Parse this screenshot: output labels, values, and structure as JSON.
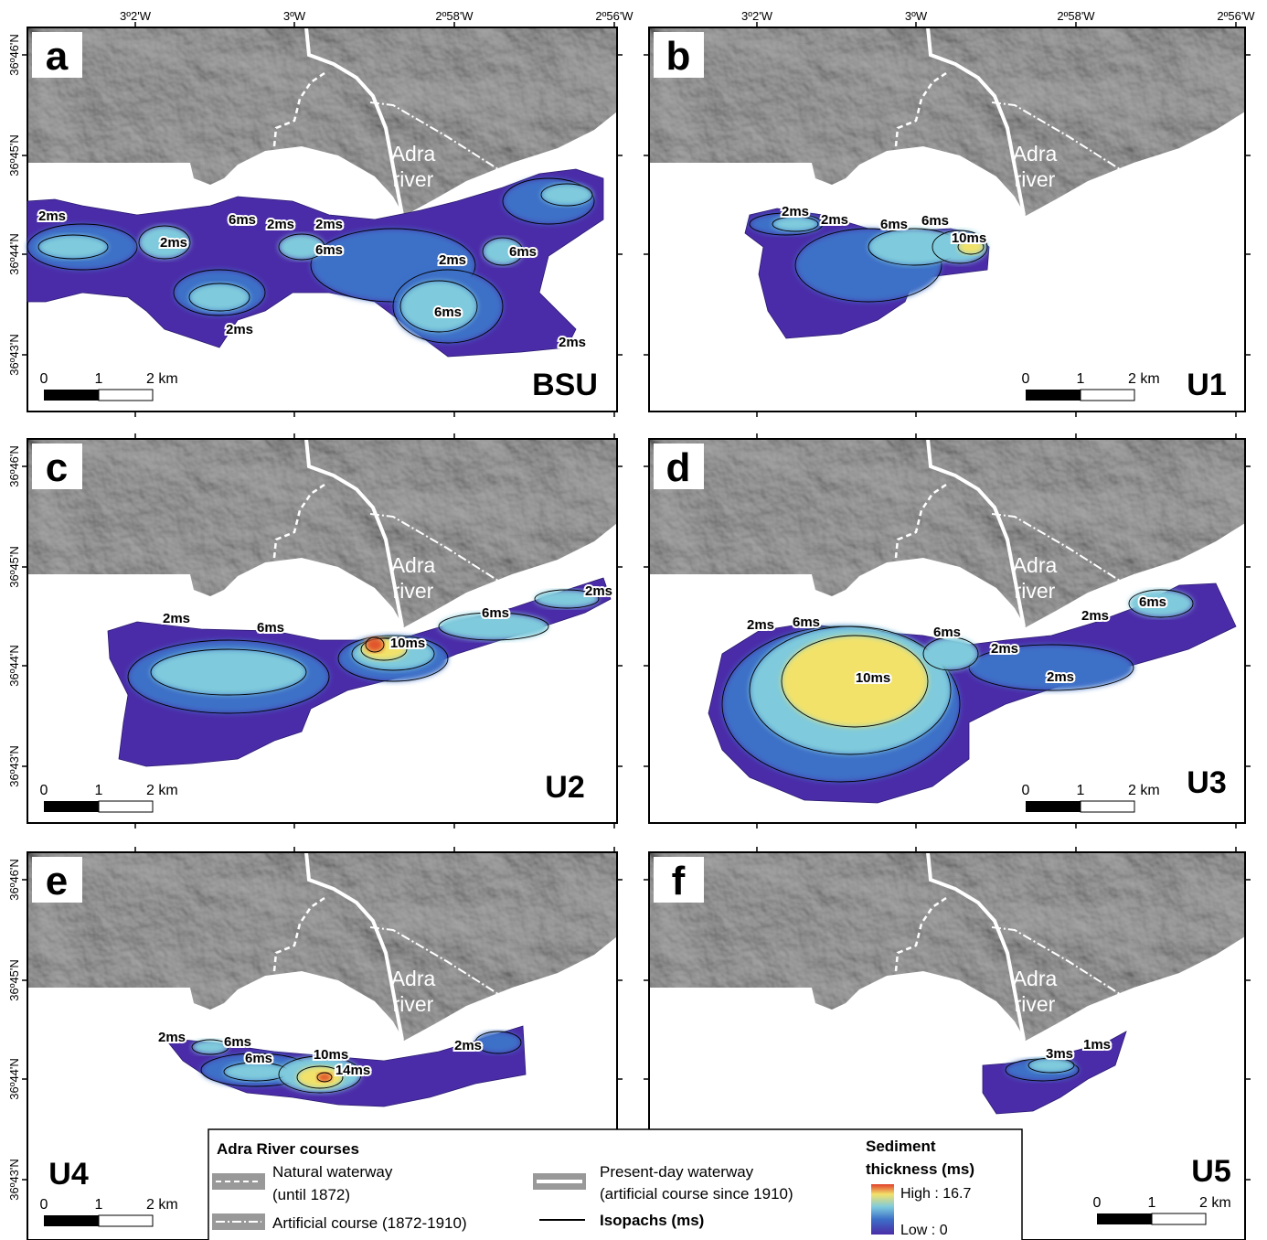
{
  "lon_labels": [
    "3º2'W",
    "3ºW",
    "2º58'W",
    "2º56'W"
  ],
  "lat_labels": [
    "36º46'N",
    "36º45'N",
    "36º44'N",
    "36º43'N"
  ],
  "river_label": [
    "Adra",
    "river"
  ],
  "scale_bar": [
    "0",
    "1",
    "2 km"
  ],
  "panels": [
    {
      "letter": "a",
      "unit": "BSU",
      "isopachs": [
        "2ms",
        "6ms",
        "2ms",
        "2ms",
        "2ms",
        "6ms",
        "2ms",
        "6ms",
        "6ms",
        "2ms",
        "2ms"
      ]
    },
    {
      "letter": "b",
      "unit": "U1",
      "isopachs": [
        "2ms",
        "2ms",
        "6ms",
        "6ms",
        "10ms"
      ]
    },
    {
      "letter": "c",
      "unit": "U2",
      "isopachs": [
        "2ms",
        "6ms",
        "10ms",
        "6ms",
        "2ms"
      ]
    },
    {
      "letter": "d",
      "unit": "U3",
      "isopachs": [
        "2ms",
        "6ms",
        "6ms",
        "2ms",
        "2ms",
        "6ms",
        "10ms",
        "2ms"
      ]
    },
    {
      "letter": "e",
      "unit": "U4",
      "isopachs": [
        "2ms",
        "6ms",
        "6ms",
        "10ms",
        "14ms",
        "2ms"
      ]
    },
    {
      "letter": "f",
      "unit": "U5",
      "isopachs": [
        "3ms",
        "1ms"
      ]
    }
  ],
  "legend": {
    "title": "Adra River courses",
    "items": [
      [
        "Natural waterway",
        "(until 1872)"
      ],
      [
        "Artificial course (1872-1910)"
      ],
      [
        "Present-day waterway",
        "(artificial course since 1910)"
      ],
      [
        "Isopachs (ms)"
      ]
    ],
    "thickness": {
      "title": [
        "Sediment",
        "thickness  (ms)"
      ],
      "high": "High : 16.7",
      "low": "Low : 0"
    }
  }
}
